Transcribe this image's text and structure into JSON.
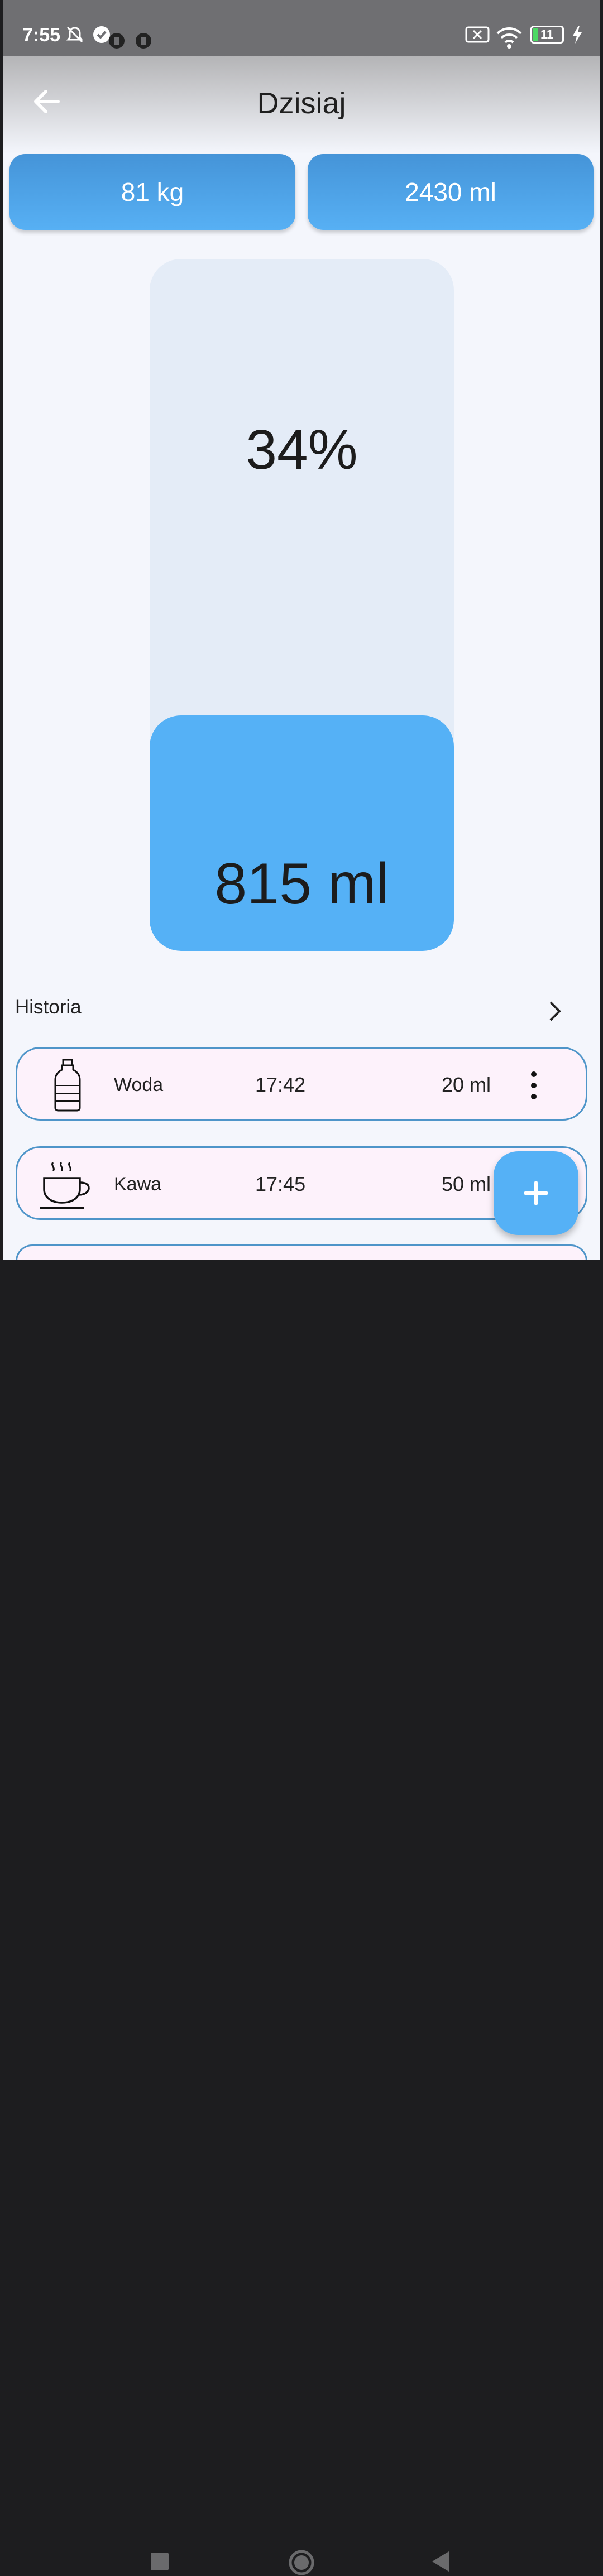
{
  "status_bar": {
    "time": "7:55",
    "battery": "11",
    "icons": [
      "bell-off-icon",
      "check-circle-icon",
      "notification-icon",
      "notification-icon",
      "sim-off-icon",
      "wifi-icon",
      "battery-icon",
      "charging-icon"
    ]
  },
  "header": {
    "title": "Dzisiaj",
    "back_icon": "arrow-left-icon"
  },
  "stats": {
    "weight": "81 kg",
    "goal": "2430 ml"
  },
  "gauge": {
    "percent_label": "34%",
    "amount_label": "815 ml",
    "fill_fraction": 0.34,
    "fill_color": "#55b1f6",
    "track_color": "#e4ecf7"
  },
  "history": {
    "title": "Historia",
    "entries": [
      {
        "name": "Woda",
        "time": "17:42",
        "volume": "20 ml",
        "icon": "water-bottle-icon"
      },
      {
        "name": "Kawa",
        "time": "17:45",
        "volume": "50 ml",
        "icon": "coffee-cup-icon"
      }
    ]
  },
  "fab": {
    "icon": "plus-icon"
  },
  "nav_bar": {
    "icons": [
      "square-icon",
      "circle-icon",
      "triangle-back-icon"
    ]
  },
  "colors": {
    "accent": "#55b1f6",
    "chip_top": "#4594d8",
    "entry_border": "#4e95c9",
    "entry_bg": "#fdf2fb",
    "background": "#f4f6fc"
  }
}
